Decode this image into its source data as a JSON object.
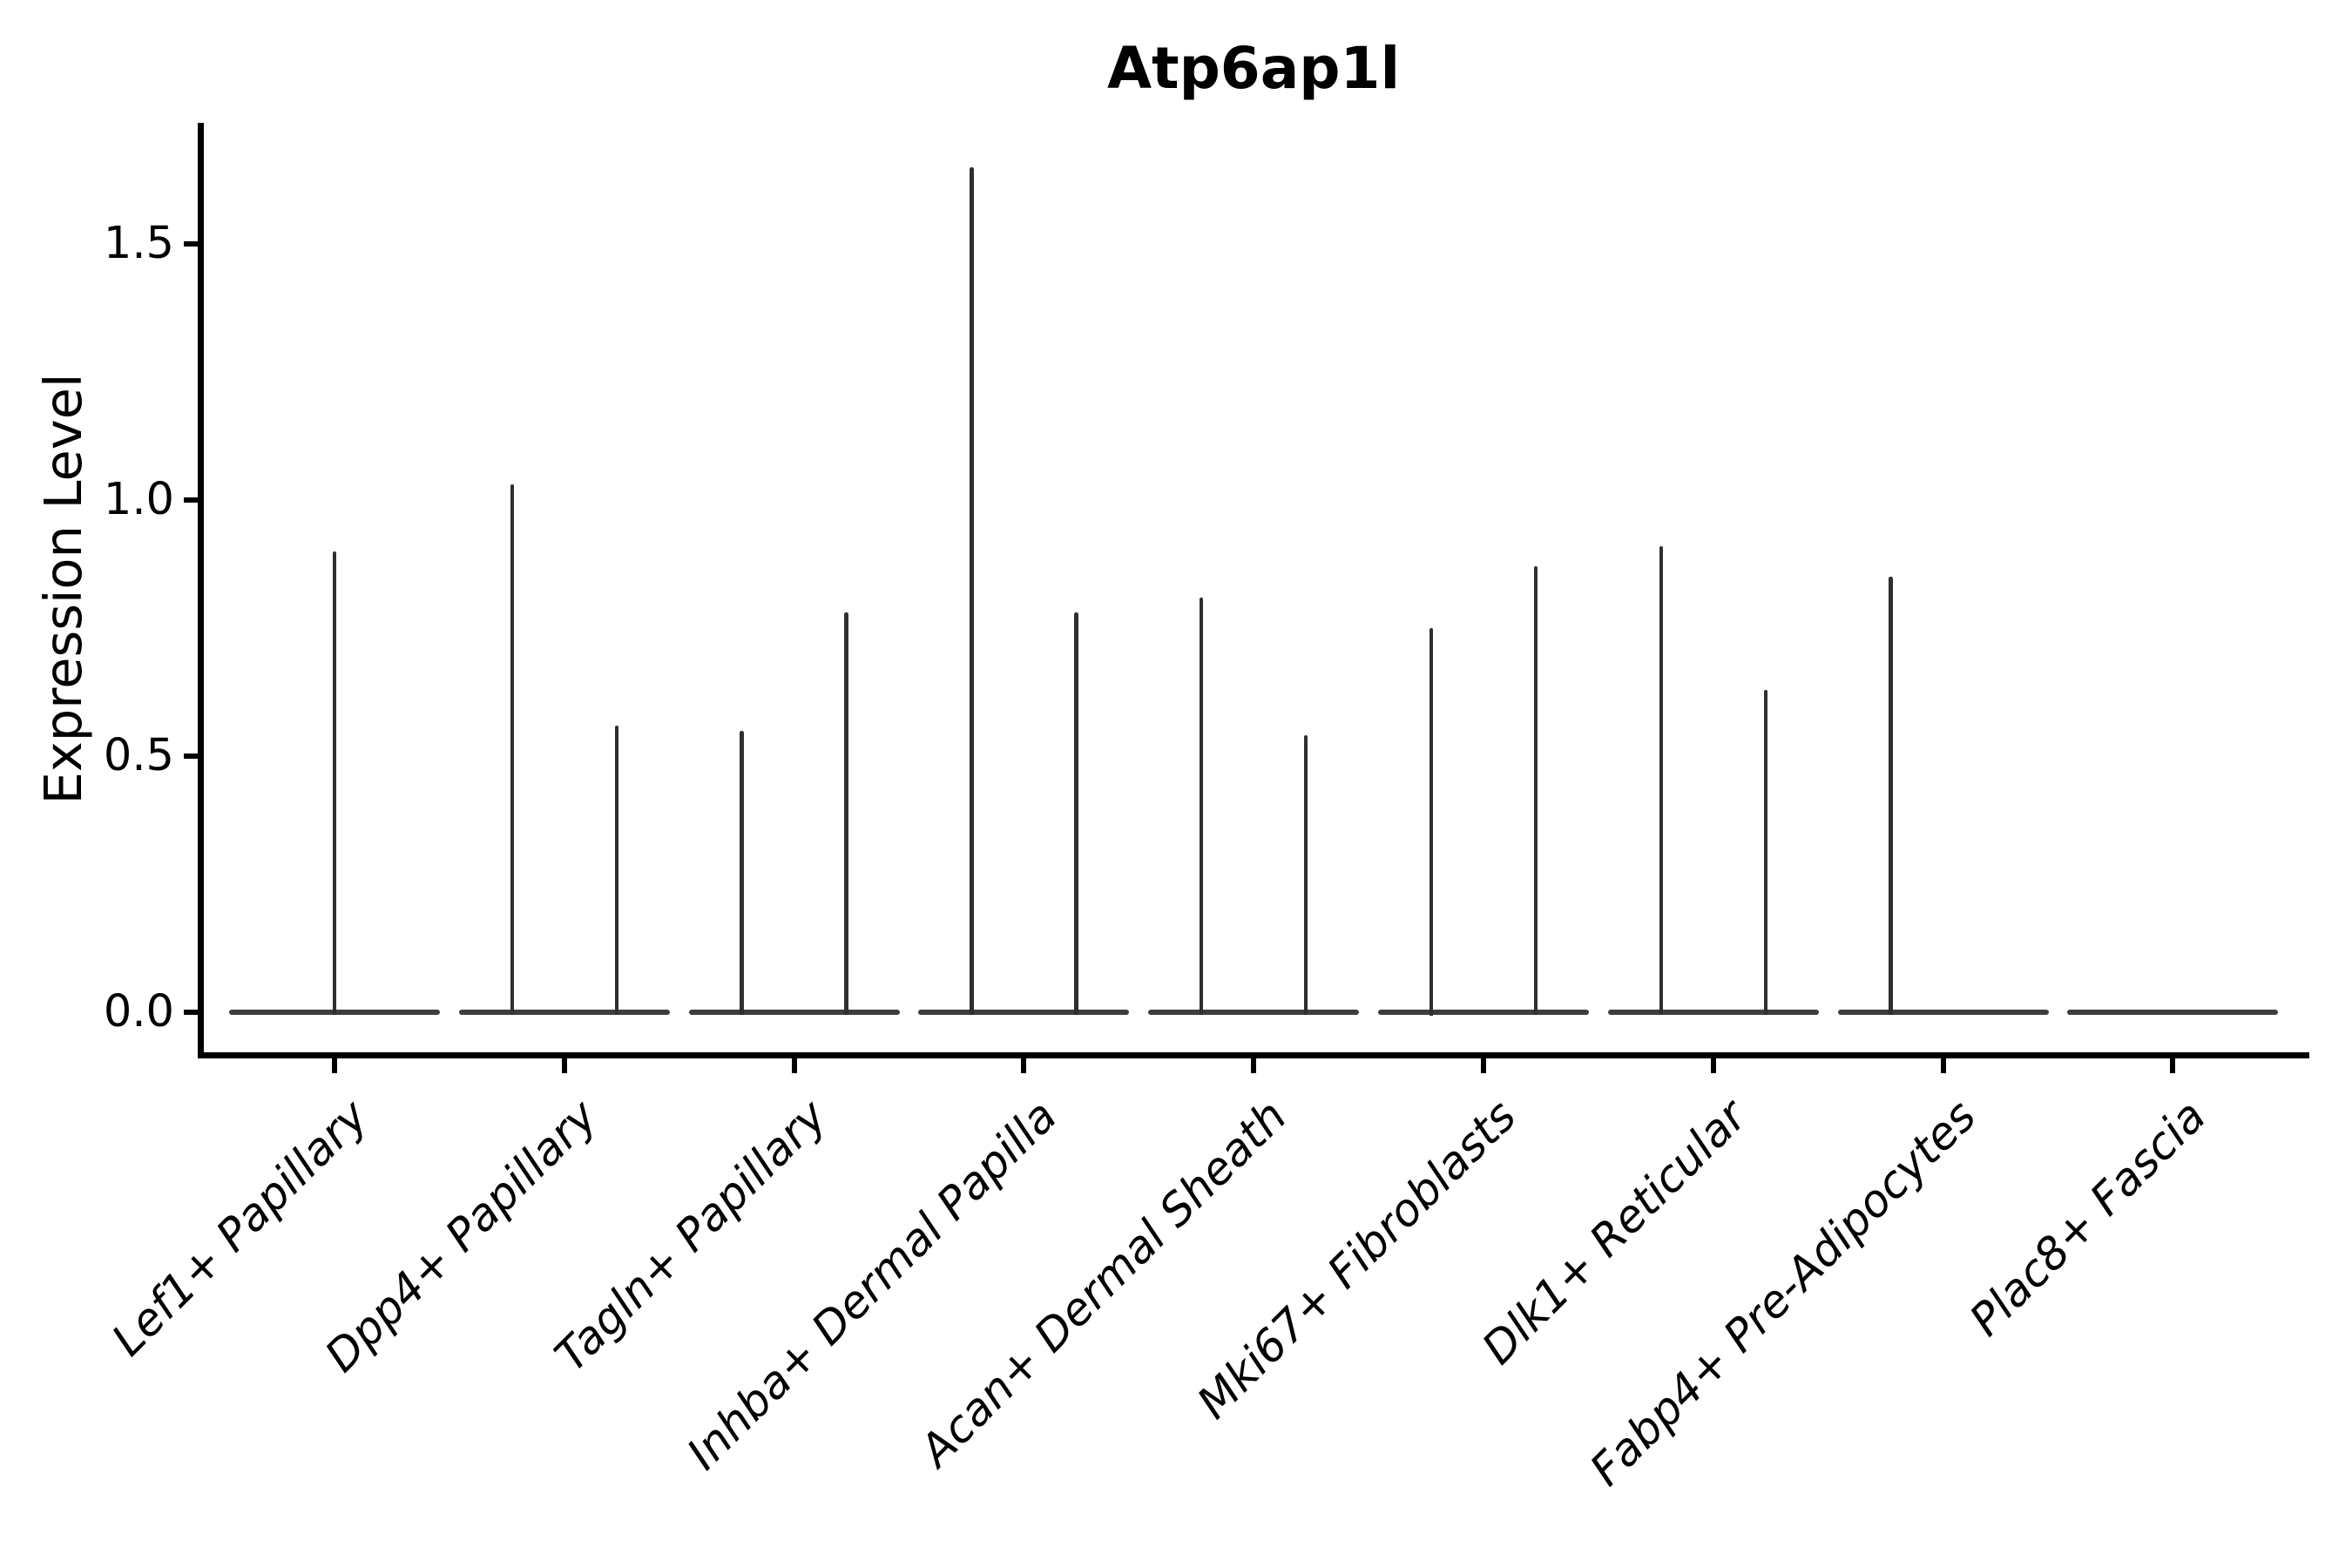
{
  "chart_data": {
    "type": "violin",
    "title": "Atp6ap1l",
    "ylabel": "Expression Level",
    "xlabel": "",
    "yticks": [
      0.0,
      0.5,
      1.0,
      1.5
    ],
    "ylim": [
      -0.08,
      1.74
    ],
    "grid": false,
    "legend_position": "none",
    "categories": [
      "Lef1+ Papillary",
      "Dpp4+ Papillary",
      "Tagln+ Papillary",
      "Inhba+ Dermal Papilla",
      "Acan+ Dermal Sheath",
      "Mki67+ Fibroblasts",
      "Dlk1+ Reticular",
      "Fabp4+ Pre-Adipocytes",
      "Plac8+ Fascia"
    ],
    "series": [
      {
        "category": "Lef1+ Papillary",
        "violins": [
          {
            "side": "center",
            "peak": 0.9
          }
        ]
      },
      {
        "category": "Dpp4+ Papillary",
        "violins": [
          {
            "side": "left",
            "peak": 1.03
          },
          {
            "side": "right",
            "peak": 0.56
          }
        ]
      },
      {
        "category": "Tagln+ Papillary",
        "violins": [
          {
            "side": "left",
            "peak": 0.55
          },
          {
            "side": "right",
            "peak": 0.78
          }
        ]
      },
      {
        "category": "Inhba+ Dermal Papilla",
        "violins": [
          {
            "side": "left",
            "peak": 1.65
          },
          {
            "side": "right",
            "peak": 0.78
          }
        ]
      },
      {
        "category": "Acan+ Dermal Sheath",
        "violins": [
          {
            "side": "left",
            "peak": 0.81
          },
          {
            "side": "right",
            "peak": 0.54
          }
        ]
      },
      {
        "category": "Mki67+ Fibroblasts",
        "violins": [
          {
            "side": "left",
            "peak": 0.75
          },
          {
            "side": "right",
            "peak": 0.87
          }
        ]
      },
      {
        "category": "Dlk1+ Reticular",
        "violins": [
          {
            "side": "left",
            "peak": 0.91
          },
          {
            "side": "right",
            "peak": 0.63
          }
        ]
      },
      {
        "category": "Fabp4+ Pre-Adipocytes",
        "violins": [
          {
            "side": "left",
            "peak": 0.85
          }
        ]
      },
      {
        "category": "Plac8+ Fascia",
        "violins": []
      }
    ],
    "colors": {
      "violin": "#3a3a3a",
      "axis": "#000000",
      "text": "#000000",
      "background": "#ffffff"
    }
  }
}
